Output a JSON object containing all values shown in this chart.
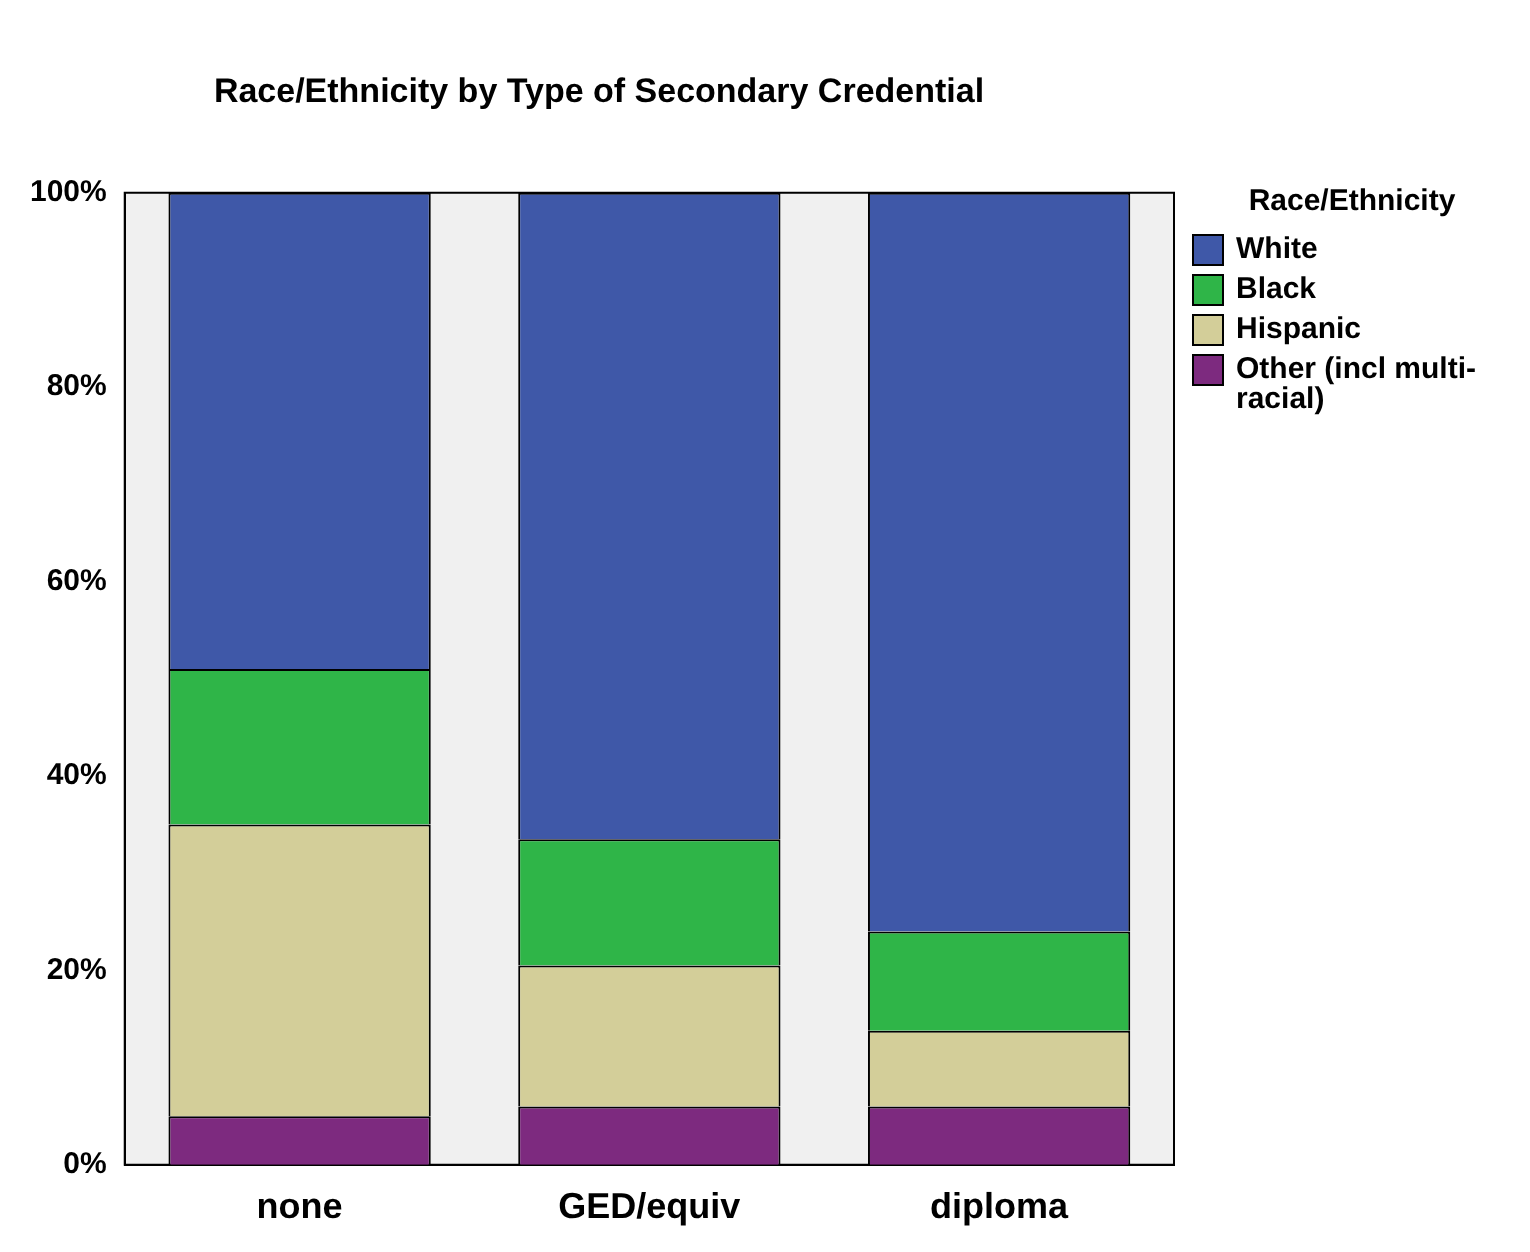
{
  "chart_data": {
    "type": "bar",
    "title": "Race/Ethnicity by Type of Secondary Credential",
    "legend_title": "Race/Ethnicity",
    "categories": [
      "none",
      "GED/equiv",
      "diploma"
    ],
    "stacked": true,
    "ylim": [
      0,
      100
    ],
    "yticks": [
      {
        "value": 0,
        "label": "0%"
      },
      {
        "value": 20,
        "label": "20%"
      },
      {
        "value": 40,
        "label": "40%"
      },
      {
        "value": 60,
        "label": "60%"
      },
      {
        "value": 80,
        "label": "80%"
      },
      {
        "value": 100,
        "label": "100%"
      }
    ],
    "series": [
      {
        "name": "Other (incl multi-racial)",
        "color": "#7d2a7f",
        "values": [
          5,
          6,
          6
        ]
      },
      {
        "name": "Hispanic",
        "color": "#d3ce99",
        "values": [
          30,
          14.5,
          7.8
        ]
      },
      {
        "name": "Black",
        "color": "#2fb548",
        "values": [
          16,
          13,
          10.2
        ]
      },
      {
        "name": "White",
        "color": "#3f58a8",
        "values": [
          49,
          66.5,
          76
        ]
      }
    ],
    "grid": false,
    "legend": "top right"
  }
}
